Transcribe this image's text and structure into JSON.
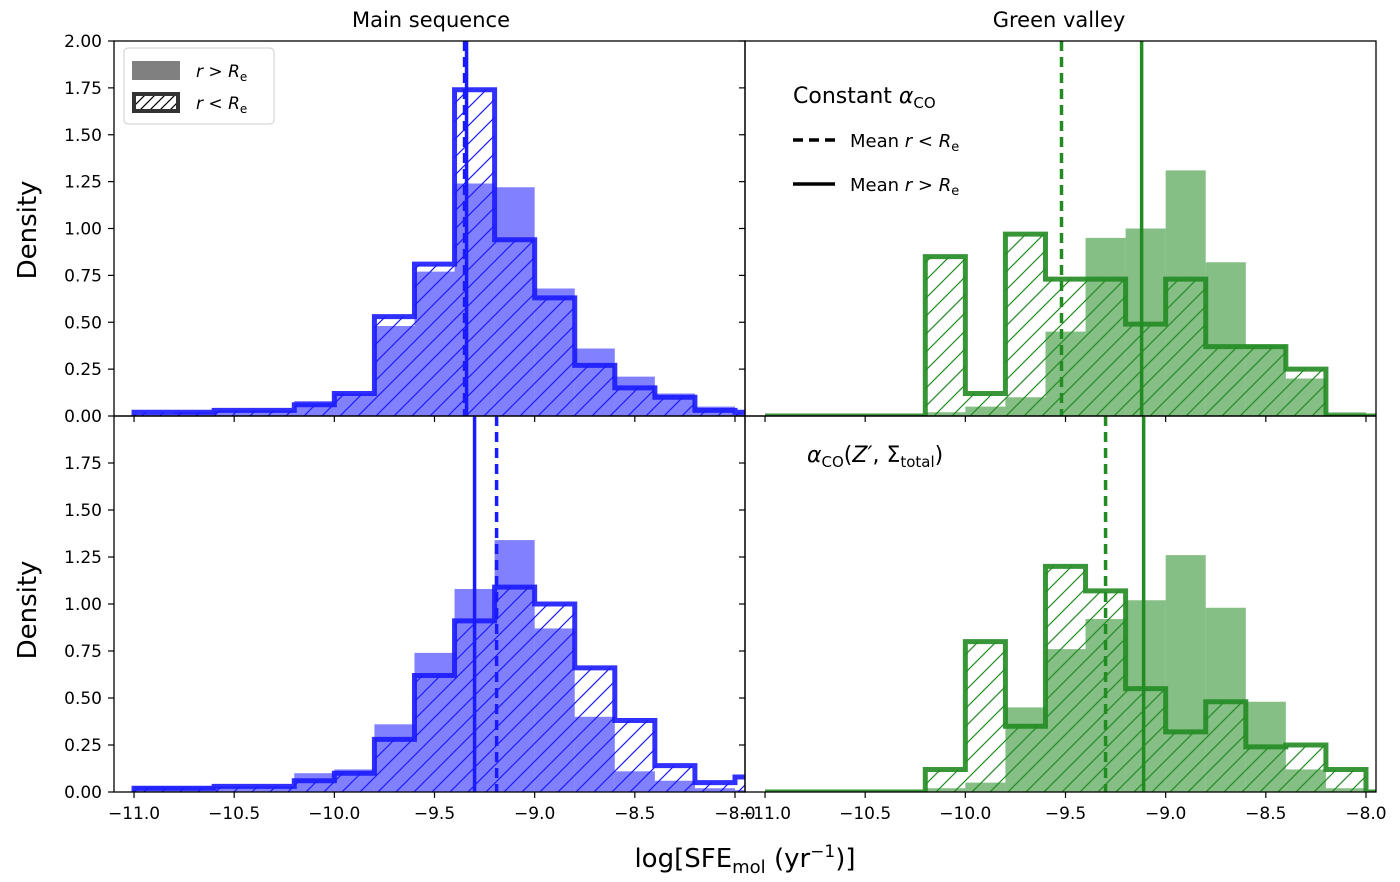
{
  "panel_titles": {
    "left": "Main sequence",
    "right": "Green valley"
  },
  "ylabel": "Density",
  "xlabel": "log[SFE_mol (yr^-1)]",
  "legend": {
    "filled": "r > R_e",
    "hatched": "r < R_e"
  },
  "annotations": {
    "top": "Constant α_CO",
    "mean_inner": "Mean r < R_e",
    "mean_outer": "Mean r > R_e",
    "bottom": "α_CO(Z′, Σ_total)"
  },
  "x_ticks": [
    "−11.0",
    "−10.5",
    "−10.0",
    "−9.5",
    "−9.0",
    "−8.5",
    "−8.0"
  ],
  "y_ticks_top": [
    "0.00",
    "0.25",
    "0.50",
    "0.75",
    "1.00",
    "1.25",
    "1.50",
    "1.75",
    "2.00"
  ],
  "y_ticks_bottom": [
    "0.00",
    "0.25",
    "0.50",
    "0.75",
    "1.00",
    "1.25",
    "1.50",
    "1.75"
  ],
  "colors": {
    "main_sequence": "#1a1aff",
    "green_valley": "#228b22"
  },
  "chart_data": [
    {
      "type": "histogram",
      "panel": "top-left",
      "title": "Main sequence",
      "xlim": [
        -11.1,
        -7.95
      ],
      "ylim": [
        0,
        2.0
      ],
      "bin_edges_start": -11.0,
      "bin_width": 0.2,
      "series": [
        {
          "name": "r > R_e",
          "style": "filled",
          "values": [
            0.01,
            0.02,
            0.03,
            0.03,
            0.08,
            0.12,
            0.48,
            0.77,
            1.24,
            1.22,
            0.68,
            0.36,
            0.21,
            0.12,
            0.05,
            0.01
          ]
        },
        {
          "name": "r < R_e",
          "style": "hatched",
          "values": [
            0.02,
            0.02,
            0.03,
            0.03,
            0.06,
            0.12,
            0.53,
            0.81,
            1.74,
            0.94,
            0.63,
            0.27,
            0.15,
            0.1,
            0.03,
            0.02
          ]
        }
      ],
      "mean_inner": -9.35,
      "mean_outer": -9.34
    },
    {
      "type": "histogram",
      "panel": "top-right",
      "title": "Green valley",
      "xlim": [
        -11.1,
        -7.95
      ],
      "ylim": [
        0,
        2.0
      ],
      "bin_edges_start": -11.0,
      "bin_width": 0.2,
      "series": [
        {
          "name": "r > R_e",
          "style": "filled",
          "values": [
            0,
            0,
            0,
            0,
            0.02,
            0.05,
            0.1,
            0.45,
            0.95,
            1.0,
            1.31,
            0.82,
            0.38,
            0.2,
            0.02,
            0
          ]
        },
        {
          "name": "r < R_e",
          "style": "hatched",
          "values": [
            0,
            0,
            0,
            0,
            0.85,
            0.12,
            0.97,
            0.73,
            0.73,
            0.49,
            0.73,
            0.37,
            0.37,
            0.25,
            0,
            0
          ]
        }
      ],
      "mean_inner": -9.52,
      "mean_outer": -9.12
    },
    {
      "type": "histogram",
      "panel": "bottom-left",
      "xlim": [
        -11.1,
        -7.95
      ],
      "ylim": [
        0,
        2.0
      ],
      "bin_edges_start": -11.0,
      "bin_width": 0.2,
      "series": [
        {
          "name": "r > R_e",
          "style": "filled",
          "values": [
            0.03,
            0.03,
            0.03,
            0.03,
            0.1,
            0.12,
            0.36,
            0.74,
            1.08,
            1.34,
            0.87,
            0.4,
            0.11,
            0.06,
            0.02,
            0.01
          ]
        },
        {
          "name": "r < R_e",
          "style": "hatched",
          "values": [
            0.02,
            0.02,
            0.03,
            0.03,
            0.06,
            0.1,
            0.28,
            0.62,
            0.91,
            1.09,
            1.0,
            0.66,
            0.38,
            0.14,
            0.05,
            0.08
          ]
        }
      ],
      "mean_inner": -9.19,
      "mean_outer": -9.3
    },
    {
      "type": "histogram",
      "panel": "bottom-right",
      "xlim": [
        -11.1,
        -7.95
      ],
      "ylim": [
        0,
        2.0
      ],
      "bin_edges_start": -11.0,
      "bin_width": 0.2,
      "series": [
        {
          "name": "r > R_e",
          "style": "filled",
          "values": [
            0,
            0,
            0,
            0,
            0.02,
            0.05,
            0.45,
            0.76,
            0.92,
            1.02,
            1.26,
            0.98,
            0.48,
            0.12,
            0.02,
            0
          ]
        },
        {
          "name": "r < R_e",
          "style": "hatched",
          "values": [
            0,
            0,
            0,
            0,
            0.12,
            0.8,
            0.35,
            1.2,
            1.07,
            0.55,
            0.32,
            0.48,
            0.24,
            0.25,
            0.12,
            0
          ]
        }
      ],
      "mean_inner": -9.3,
      "mean_outer": -9.11
    }
  ]
}
